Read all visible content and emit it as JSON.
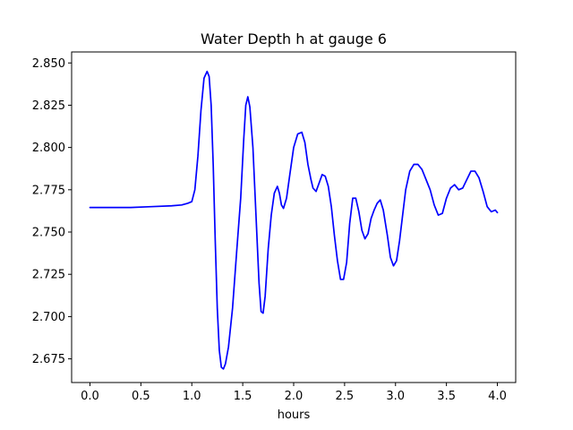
{
  "chart_data": {
    "type": "line",
    "title": "Water Depth h at gauge 6",
    "xlabel": "hours",
    "ylabel": "",
    "xlim": [
      -0.18,
      4.18
    ],
    "ylim": [
      2.661,
      2.8565
    ],
    "grid": false,
    "x_ticks": [
      0.0,
      0.5,
      1.0,
      1.5,
      2.0,
      2.5,
      3.0,
      3.5,
      4.0
    ],
    "x_tick_labels": [
      "0.0",
      "0.5",
      "1.0",
      "1.5",
      "2.0",
      "2.5",
      "3.0",
      "3.5",
      "4.0"
    ],
    "y_ticks": [
      2.675,
      2.7,
      2.725,
      2.75,
      2.775,
      2.8,
      2.825,
      2.85
    ],
    "y_tick_labels": [
      "2.675",
      "2.700",
      "2.725",
      "2.750",
      "2.775",
      "2.800",
      "2.825",
      "2.850"
    ],
    "series": [
      {
        "color": "#0000ff",
        "x": [
          0.0,
          0.2,
          0.4,
          0.6,
          0.8,
          0.9,
          0.96,
          1.0,
          1.03,
          1.06,
          1.09,
          1.12,
          1.15,
          1.17,
          1.19,
          1.21,
          1.23,
          1.25,
          1.27,
          1.29,
          1.31,
          1.33,
          1.36,
          1.4,
          1.44,
          1.48,
          1.51,
          1.53,
          1.55,
          1.57,
          1.6,
          1.63,
          1.66,
          1.68,
          1.7,
          1.72,
          1.75,
          1.78,
          1.81,
          1.84,
          1.86,
          1.88,
          1.9,
          1.93,
          1.96,
          2.0,
          2.04,
          2.08,
          2.11,
          2.14,
          2.17,
          2.19,
          2.22,
          2.25,
          2.28,
          2.31,
          2.34,
          2.37,
          2.4,
          2.43,
          2.46,
          2.49,
          2.52,
          2.55,
          2.58,
          2.61,
          2.64,
          2.67,
          2.7,
          2.73,
          2.76,
          2.79,
          2.82,
          2.85,
          2.88,
          2.92,
          2.95,
          2.98,
          3.01,
          3.04,
          3.07,
          3.1,
          3.14,
          3.18,
          3.22,
          3.26,
          3.3,
          3.34,
          3.38,
          3.42,
          3.46,
          3.5,
          3.54,
          3.58,
          3.62,
          3.66,
          3.7,
          3.74,
          3.78,
          3.82,
          3.86,
          3.9,
          3.94,
          3.98,
          4.0
        ],
        "y": [
          2.7645,
          2.7645,
          2.7645,
          2.765,
          2.7655,
          2.766,
          2.767,
          2.768,
          2.775,
          2.795,
          2.822,
          2.841,
          2.845,
          2.842,
          2.825,
          2.79,
          2.745,
          2.705,
          2.68,
          2.67,
          2.669,
          2.672,
          2.682,
          2.705,
          2.738,
          2.77,
          2.805,
          2.825,
          2.83,
          2.824,
          2.8,
          2.76,
          2.72,
          2.703,
          2.702,
          2.712,
          2.74,
          2.76,
          2.773,
          2.777,
          2.773,
          2.766,
          2.764,
          2.77,
          2.783,
          2.8,
          2.808,
          2.809,
          2.803,
          2.79,
          2.781,
          2.776,
          2.774,
          2.779,
          2.784,
          2.783,
          2.777,
          2.765,
          2.748,
          2.733,
          2.722,
          2.722,
          2.732,
          2.755,
          2.77,
          2.77,
          2.762,
          2.751,
          2.746,
          2.749,
          2.758,
          2.763,
          2.767,
          2.769,
          2.763,
          2.748,
          2.735,
          2.73,
          2.733,
          2.745,
          2.76,
          2.775,
          2.786,
          2.79,
          2.79,
          2.787,
          2.781,
          2.775,
          2.766,
          2.76,
          2.761,
          2.77,
          2.776,
          2.778,
          2.775,
          2.776,
          2.781,
          2.786,
          2.786,
          2.782,
          2.774,
          2.765,
          2.762,
          2.763,
          2.7615
        ]
      }
    ]
  }
}
